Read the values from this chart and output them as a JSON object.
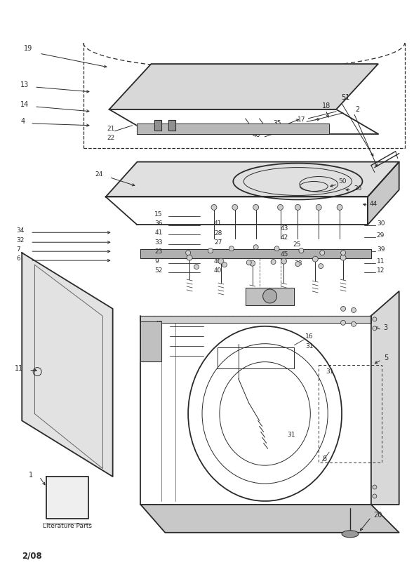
{
  "bg_color": "#ffffff",
  "line_color": "#2a2a2a",
  "date_label": "2/08",
  "literature_label": "Literature Parts"
}
